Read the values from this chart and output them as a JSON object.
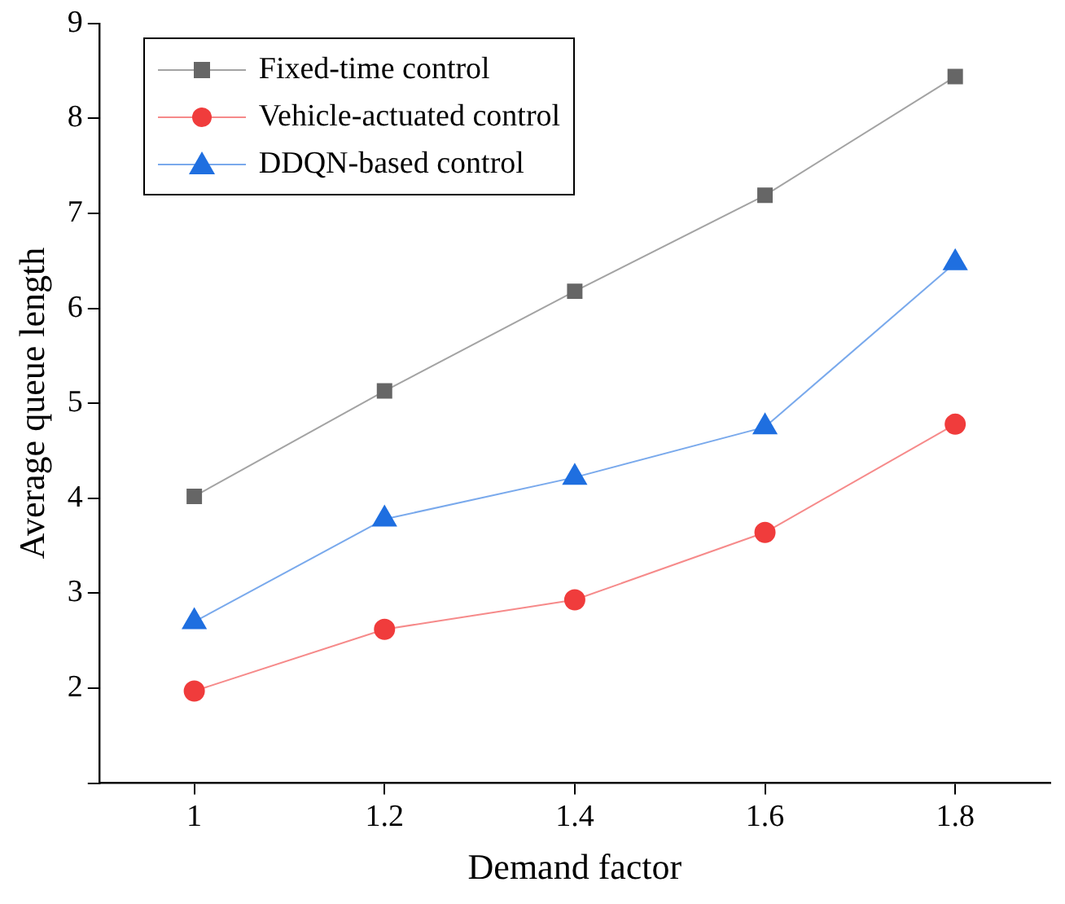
{
  "chart_data": {
    "type": "line",
    "xlabel": "Demand factor",
    "ylabel": "Average queue length",
    "x": [
      1,
      1.2,
      1.4,
      1.6,
      1.8
    ],
    "series": [
      {
        "name": "Fixed-time control",
        "color": "#666666",
        "marker": "square",
        "values": [
          4.02,
          5.13,
          6.18,
          7.19,
          8.44
        ]
      },
      {
        "name": "Vehicle-actuated control",
        "color": "#f03c3c",
        "marker": "circle",
        "values": [
          1.97,
          2.62,
          2.93,
          3.64,
          4.78
        ]
      },
      {
        "name": "DDQN-based control",
        "color": "#1f6fe0",
        "marker": "triangle",
        "values": [
          2.7,
          3.78,
          4.22,
          4.75,
          6.48
        ]
      }
    ],
    "xlim": [
      0.9,
      1.9
    ],
    "xticks": [
      1,
      1.2,
      1.4,
      1.6,
      1.8
    ],
    "ylim": [
      1,
      9
    ],
    "yticks": [
      {
        "value": 1,
        "label": null
      },
      2,
      3,
      4,
      5,
      6,
      7,
      8,
      9
    ],
    "grid": false,
    "legend": "top left",
    "line_style": "solid"
  }
}
